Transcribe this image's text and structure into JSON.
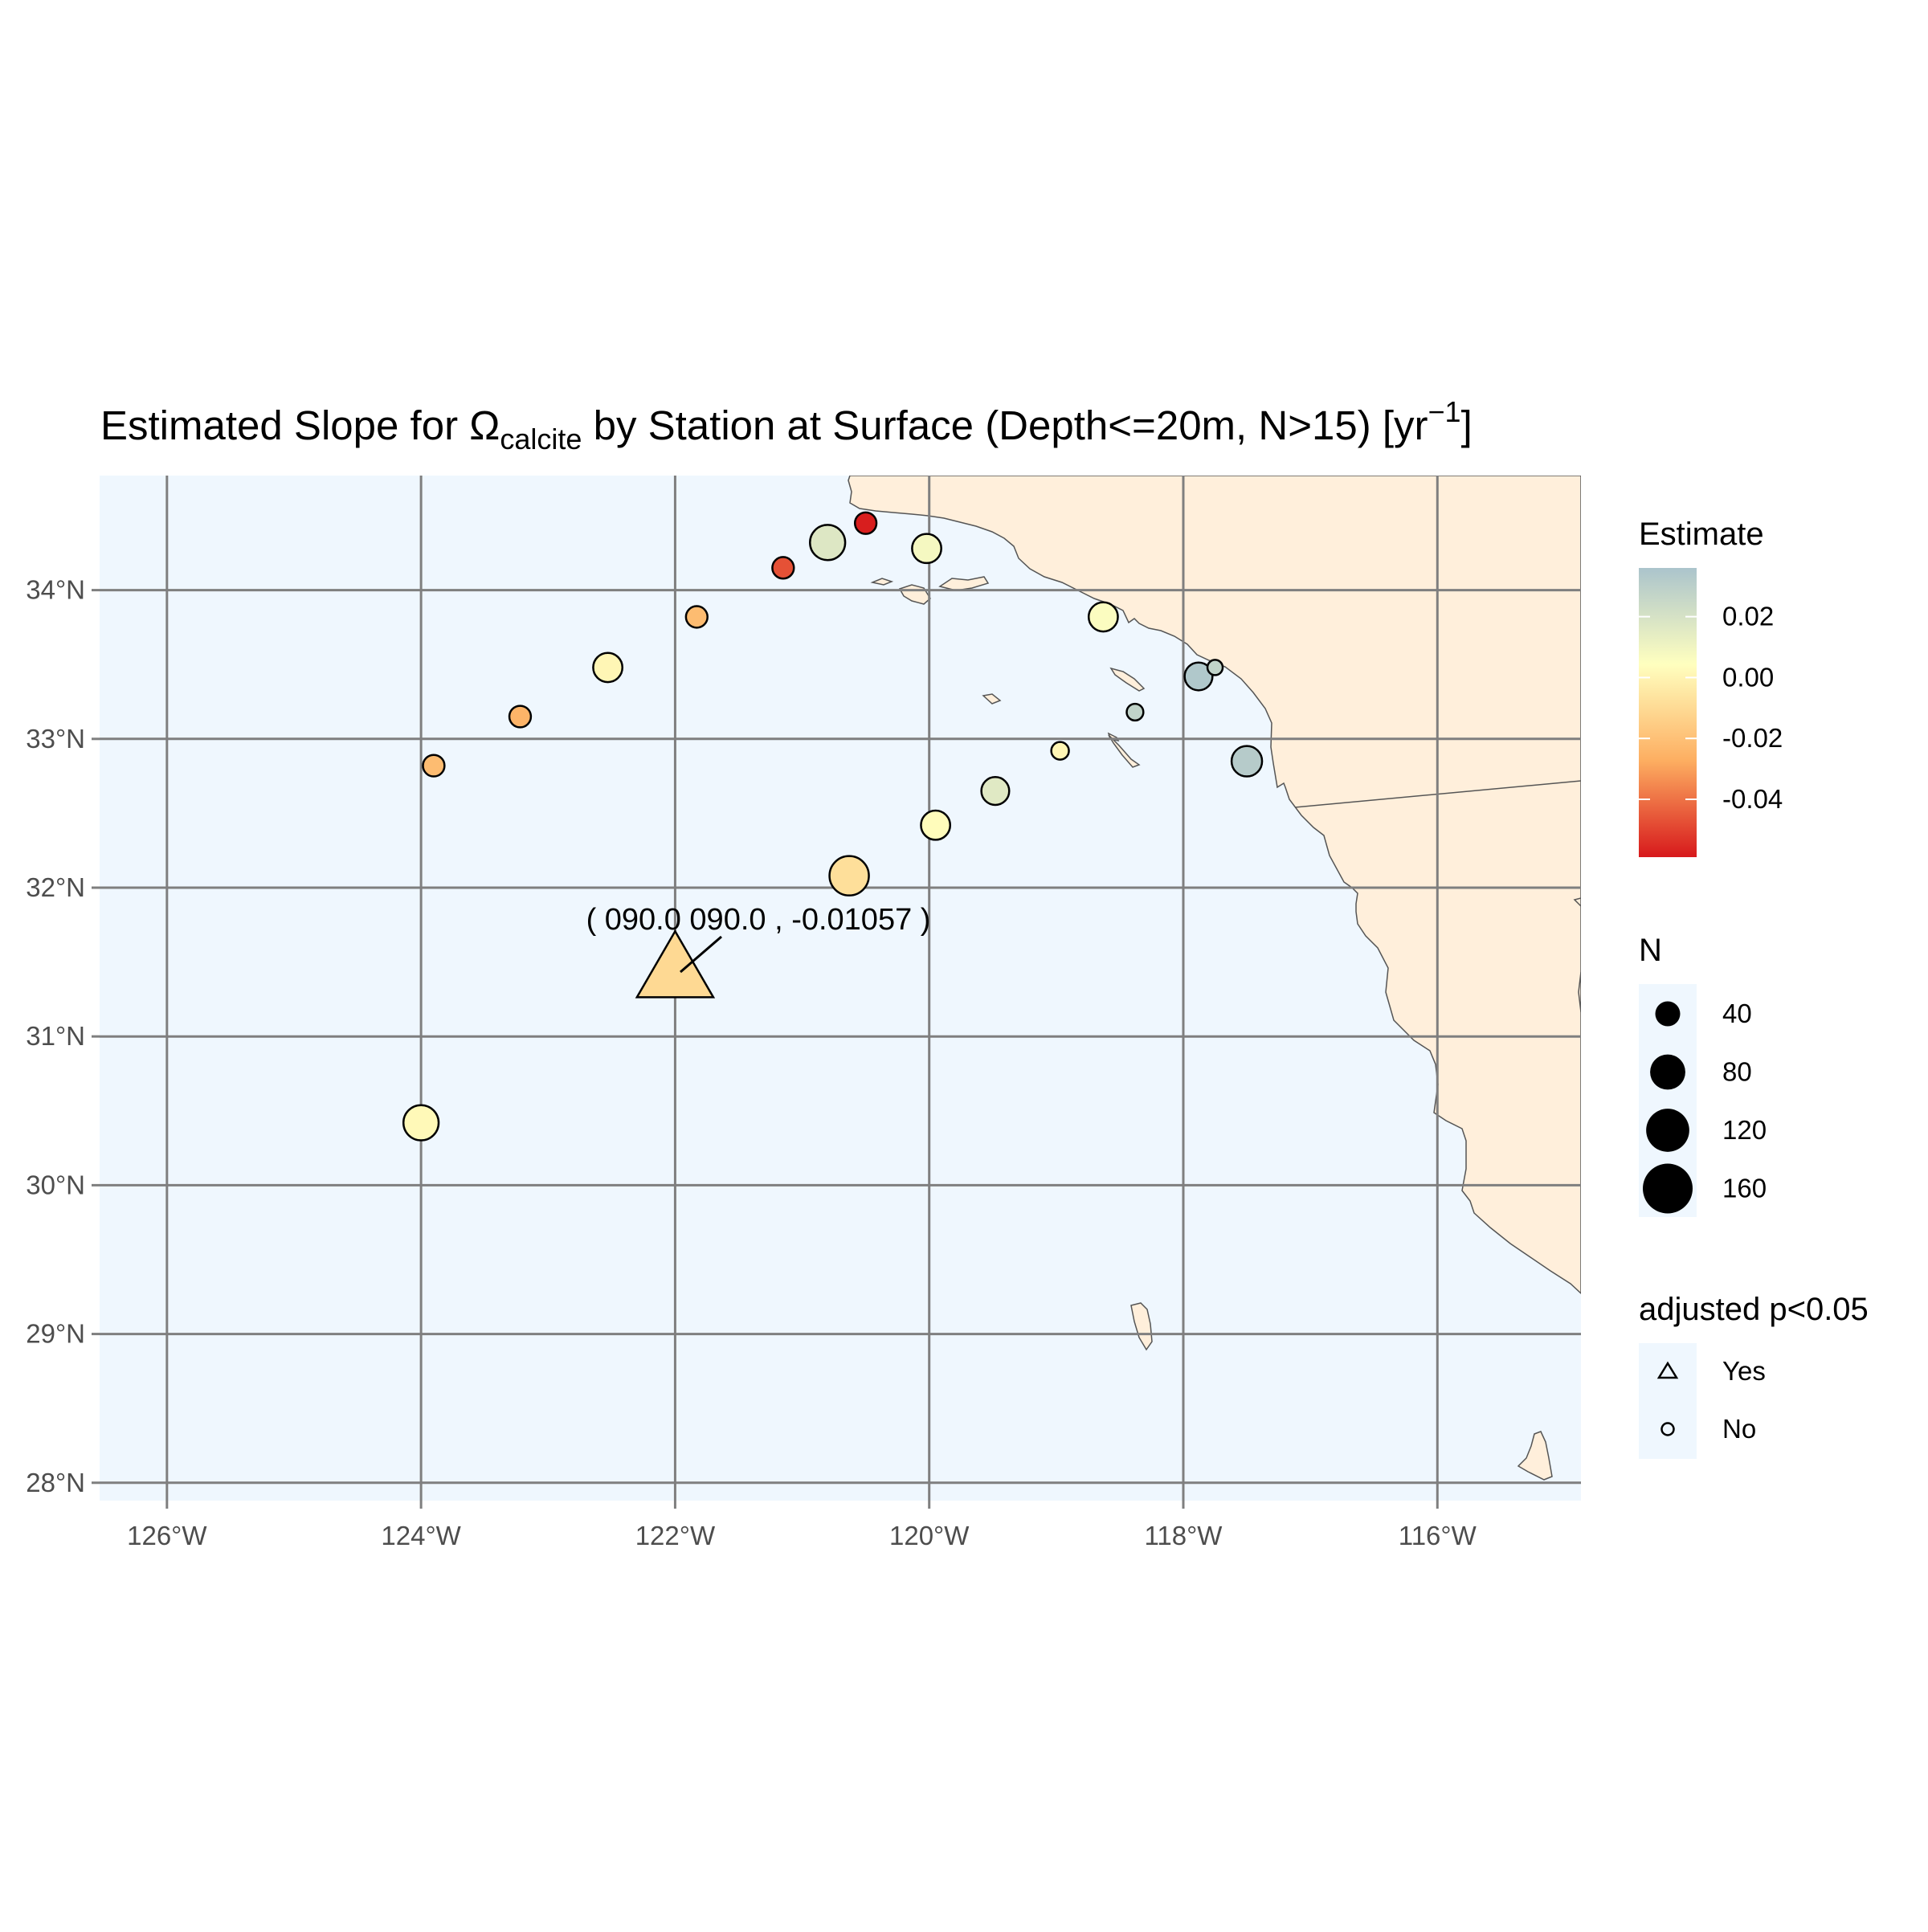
{
  "title": {
    "prefix": "Estimated Slope for Ω",
    "subscript": "calcite",
    "middle": " by Station at Surface (Depth<=20m, N>15) [yr",
    "superscript": "−1",
    "suffix": "]"
  },
  "colors": {
    "ocean": "#eff7fe",
    "land": "#ffefdb",
    "coast_stroke": "#555555",
    "grid": "#7f7f7f",
    "point_stroke": "#000000",
    "axis_text": "#4d4d4d"
  },
  "axes": {
    "x_ticks": [
      {
        "value": -126,
        "label": "126°W"
      },
      {
        "value": -124,
        "label": "124°W"
      },
      {
        "value": -122,
        "label": "122°W"
      },
      {
        "value": -120,
        "label": "120°W"
      },
      {
        "value": -118,
        "label": "118°W"
      },
      {
        "value": -116,
        "label": "116°W"
      }
    ],
    "y_ticks": [
      {
        "value": 28,
        "label": "28°N"
      },
      {
        "value": 29,
        "label": "29°N"
      },
      {
        "value": 30,
        "label": "30°N"
      },
      {
        "value": 31,
        "label": "31°N"
      },
      {
        "value": 32,
        "label": "32°N"
      },
      {
        "value": 33,
        "label": "33°N"
      },
      {
        "value": 34,
        "label": "34°N"
      }
    ],
    "lon_range": [
      -126.53,
      -114.87
    ],
    "lat_range": [
      27.88,
      34.77
    ]
  },
  "annotation": {
    "text": "( 090.0 090.0 , -0.01057 )",
    "station": {
      "lon": -122.0,
      "lat": 31.45
    }
  },
  "legends": {
    "estimate": {
      "title": "Estimate",
      "ticks": [
        {
          "value": 0.02,
          "label": "0.02"
        },
        {
          "value": 0.0,
          "label": "0.00"
        },
        {
          "value": -0.02,
          "label": "-0.02"
        },
        {
          "value": -0.04,
          "label": "-0.04"
        }
      ],
      "range": [
        -0.059,
        0.036
      ],
      "colors": [
        "#d7191c",
        "#fdae61",
        "#ffffbf",
        "#abc4cc"
      ]
    },
    "n": {
      "title": "N",
      "entries": [
        {
          "value": 40,
          "label": "40"
        },
        {
          "value": 80,
          "label": "80"
        },
        {
          "value": 120,
          "label": "120"
        },
        {
          "value": 160,
          "label": "160"
        }
      ]
    },
    "significance": {
      "title": "adjusted p<0.05",
      "entries": [
        {
          "shape": "triangle",
          "label": "Yes"
        },
        {
          "shape": "circle",
          "label": "No"
        }
      ]
    }
  },
  "map_data": {
    "type": "scatter-map",
    "stations": [
      {
        "lon": -120.5,
        "lat": 34.45,
        "estimate": -0.058,
        "n": 30,
        "significant": false
      },
      {
        "lon": -120.8,
        "lat": 34.32,
        "estimate": 0.017,
        "n": 80,
        "significant": false
      },
      {
        "lon": -120.02,
        "lat": 34.28,
        "estimate": 0.008,
        "n": 55,
        "significant": false
      },
      {
        "lon": -121.15,
        "lat": 34.15,
        "estimate": -0.047,
        "n": 30,
        "significant": false
      },
      {
        "lon": -121.83,
        "lat": 33.82,
        "estimate": -0.022,
        "n": 30,
        "significant": false
      },
      {
        "lon": -118.63,
        "lat": 33.82,
        "estimate": 0.006,
        "n": 55,
        "significant": false
      },
      {
        "lon": -122.53,
        "lat": 33.48,
        "estimate": 0.001,
        "n": 55,
        "significant": false
      },
      {
        "lon": -117.88,
        "lat": 33.42,
        "estimate": 0.034,
        "n": 50,
        "significant": false
      },
      {
        "lon": -117.75,
        "lat": 33.48,
        "estimate": 0.028,
        "n": 15,
        "significant": false
      },
      {
        "lon": -118.38,
        "lat": 33.18,
        "estimate": 0.028,
        "n": 18,
        "significant": false
      },
      {
        "lon": -123.22,
        "lat": 33.15,
        "estimate": -0.025,
        "n": 30,
        "significant": false
      },
      {
        "lon": -118.97,
        "lat": 32.92,
        "estimate": 0.001,
        "n": 20,
        "significant": false
      },
      {
        "lon": -123.9,
        "lat": 32.82,
        "estimate": -0.022,
        "n": 30,
        "significant": false
      },
      {
        "lon": -117.5,
        "lat": 32.85,
        "estimate": 0.032,
        "n": 60,
        "significant": false
      },
      {
        "lon": -119.48,
        "lat": 32.65,
        "estimate": 0.016,
        "n": 50,
        "significant": false
      },
      {
        "lon": -119.95,
        "lat": 32.42,
        "estimate": 0.003,
        "n": 55,
        "significant": false
      },
      {
        "lon": -120.63,
        "lat": 32.08,
        "estimate": -0.008,
        "n": 100,
        "significant": false
      },
      {
        "lon": -122.0,
        "lat": 31.45,
        "estimate": -0.01057,
        "n": 90,
        "significant": true
      },
      {
        "lon": -124.0,
        "lat": 30.42,
        "estimate": 0.002,
        "n": 80,
        "significant": false
      }
    ]
  }
}
